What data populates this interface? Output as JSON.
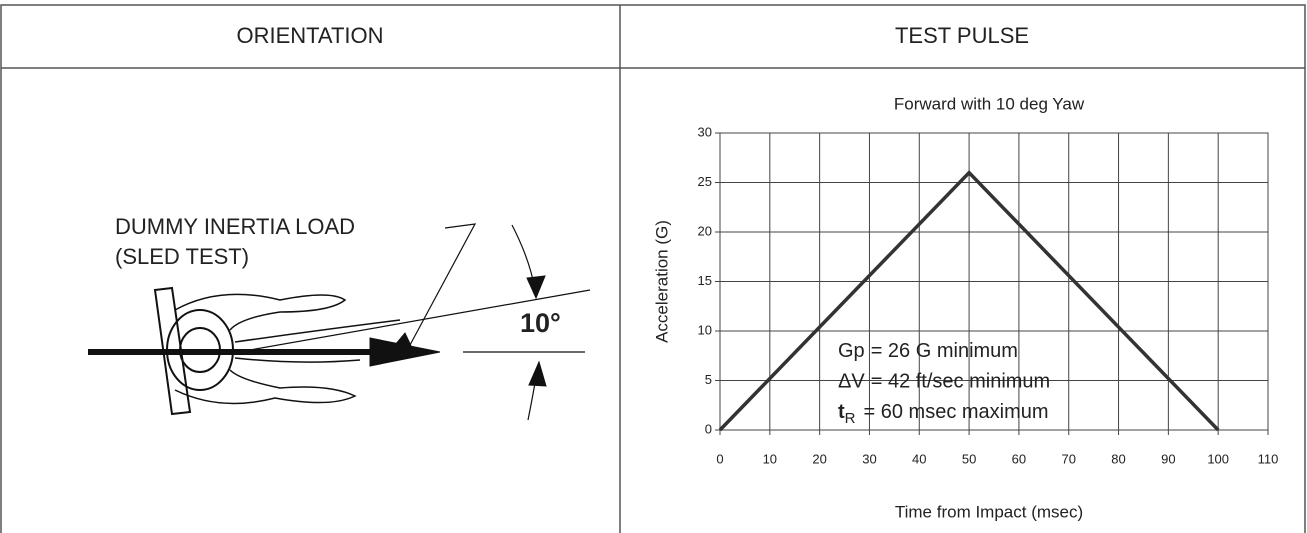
{
  "table": {
    "headers": [
      "ORIENTATION",
      "TEST PULSE"
    ]
  },
  "orientation": {
    "label_lines": [
      "DUMMY INERTIA LOAD",
      "(SLED TEST)"
    ],
    "angle": "10°"
  },
  "chart_data": {
    "type": "line",
    "title": "Forward with 10 deg Yaw",
    "x_label": "Time from Impact (msec)",
    "y_label": "Acceleration (G)",
    "series": [
      {
        "x": [
          0,
          50,
          100
        ],
        "values": [
          0,
          26,
          0
        ],
        "color": "#333333"
      }
    ],
    "xlim": [
      0,
      110
    ],
    "xticks": [
      0,
      10,
      20,
      30,
      40,
      50,
      60,
      70,
      80,
      90,
      100,
      110
    ],
    "ylim": [
      0,
      30
    ],
    "yticks": [
      0,
      5,
      10,
      15,
      20,
      25,
      30
    ],
    "grid": true,
    "annotations": [
      {
        "label": "Gp",
        "text": "= 26 G minimum"
      },
      {
        "label": "ΔV",
        "text": "= 42 ft/sec minimum"
      },
      {
        "label": "t",
        "subscript": "R",
        "text": "= 60 msec maximum"
      }
    ]
  }
}
